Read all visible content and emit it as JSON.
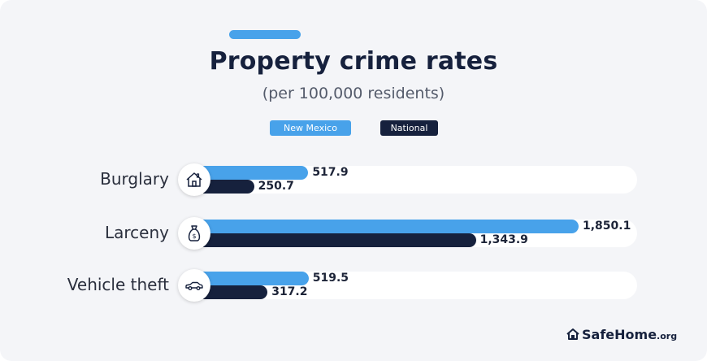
{
  "chart_data": {
    "type": "bar",
    "orientation": "horizontal",
    "title": "Property crime rates",
    "subtitle": "(per 100,000 residents)",
    "categories": [
      "Burglary",
      "Larceny",
      "Vehicle theft"
    ],
    "series": [
      {
        "name": "New Mexico",
        "values": [
          517.9,
          1850.1,
          519.5
        ],
        "labels": [
          "517.9",
          "1,850.1",
          "519.5"
        ],
        "color": "#48a2ea"
      },
      {
        "name": "National",
        "values": [
          250.7,
          1343.9,
          317.2
        ],
        "labels": [
          "250.7",
          "1,343.9",
          "317.2"
        ],
        "color": "#16213d"
      }
    ],
    "xlim": [
      0,
      2000
    ],
    "grid": false,
    "legend": "top-center",
    "icons": [
      "house-icon",
      "money-bag-icon",
      "car-icon"
    ]
  },
  "brand": {
    "name": "SafeHome",
    "suffix": ".org",
    "accent_color": "#48a2ea"
  }
}
